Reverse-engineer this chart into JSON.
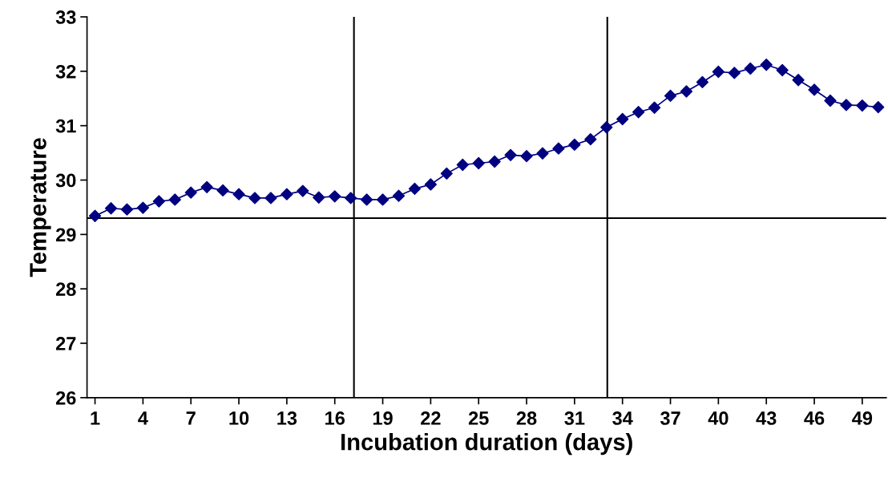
{
  "chart_data": {
    "type": "line",
    "xlabel": "Incubation duration (days)",
    "ylabel": "Temperature",
    "x": [
      1,
      2,
      3,
      4,
      5,
      6,
      7,
      8,
      9,
      10,
      11,
      12,
      13,
      14,
      15,
      16,
      17,
      18,
      19,
      20,
      21,
      22,
      23,
      24,
      25,
      26,
      27,
      28,
      29,
      30,
      31,
      32,
      33,
      34,
      35,
      36,
      37,
      38,
      39,
      40,
      41,
      42,
      43,
      44,
      45,
      46,
      47,
      48,
      49,
      50
    ],
    "series": [
      {
        "color": "#000080",
        "values": [
          29.34,
          29.48,
          29.46,
          29.49,
          29.61,
          29.64,
          29.77,
          29.87,
          29.81,
          29.74,
          29.67,
          29.67,
          29.74,
          29.8,
          29.68,
          29.7,
          29.67,
          29.64,
          29.64,
          29.71,
          29.84,
          29.92,
          30.12,
          30.28,
          30.31,
          30.34,
          30.46,
          30.44,
          30.49,
          30.58,
          30.65,
          30.75,
          30.97,
          31.12,
          31.25,
          31.33,
          31.55,
          31.63,
          31.8,
          31.99,
          31.97,
          32.05,
          32.12,
          32.02,
          31.84,
          31.66,
          31.46,
          31.38,
          31.37,
          31.34
        ]
      }
    ],
    "xlim": [
      0.5,
      50.5
    ],
    "xticks": [
      1,
      4,
      7,
      10,
      13,
      16,
      19,
      22,
      25,
      28,
      31,
      34,
      37,
      40,
      43,
      46,
      49
    ],
    "ylim": [
      26,
      33
    ],
    "yticks": [
      26,
      27,
      28,
      29,
      30,
      31,
      32,
      33
    ],
    "marker": "diamond",
    "line_style": "solid",
    "grid": false,
    "legend": false,
    "ref_lines": [
      {
        "axis": "x",
        "value": 17.2,
        "color": "#000000"
      },
      {
        "axis": "x",
        "value": 33.05,
        "color": "#000000"
      },
      {
        "axis": "y",
        "value": 29.3,
        "color": "#000000"
      }
    ]
  }
}
